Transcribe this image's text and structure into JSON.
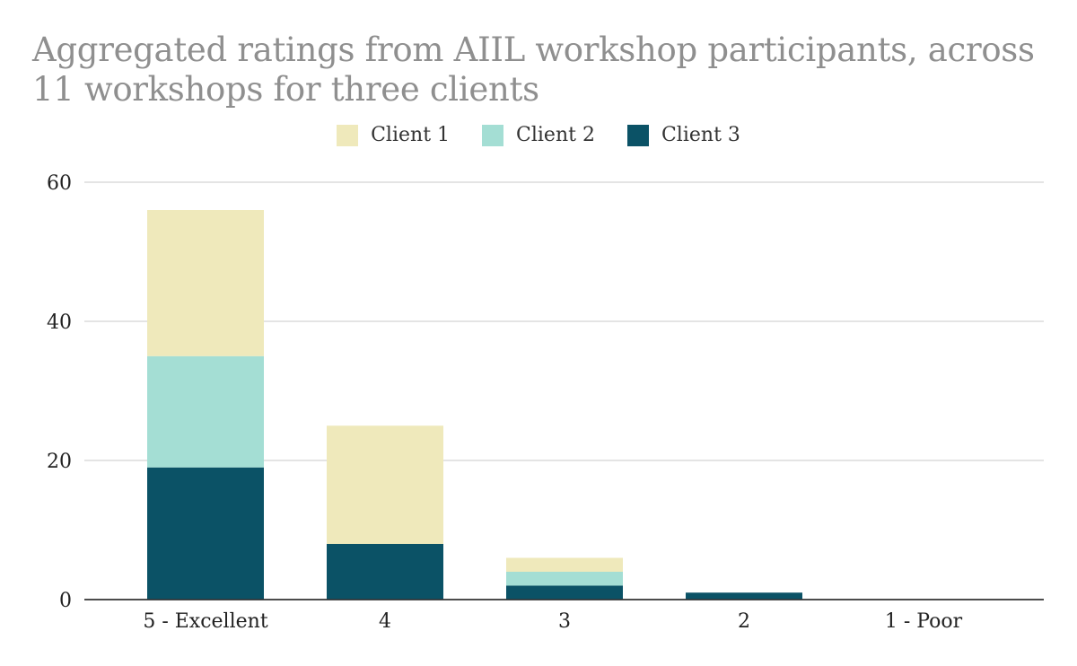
{
  "chart_data": {
    "type": "bar",
    "stacked": true,
    "title": "Aggregated ratings from AIIL workshop participants, across 11 workshops for three clients",
    "categories": [
      "5 - Excellent",
      "4",
      "3",
      "2",
      "1 - Poor"
    ],
    "series": [
      {
        "name": "Client 3",
        "values": [
          19,
          8,
          2,
          1,
          0
        ],
        "color": "#0b5266"
      },
      {
        "name": "Client 2",
        "values": [
          16,
          0,
          2,
          0,
          0
        ],
        "color": "#a4ded4"
      },
      {
        "name": "Client 1",
        "values": [
          21,
          17,
          2,
          0,
          0
        ],
        "color": "#efe9bb"
      }
    ],
    "legend_order": [
      "Client 1",
      "Client 2",
      "Client 3"
    ],
    "y_ticks": [
      "0",
      "20",
      "40",
      "60"
    ],
    "ylim": [
      0,
      60
    ],
    "grid": true,
    "legend_position": "top"
  }
}
